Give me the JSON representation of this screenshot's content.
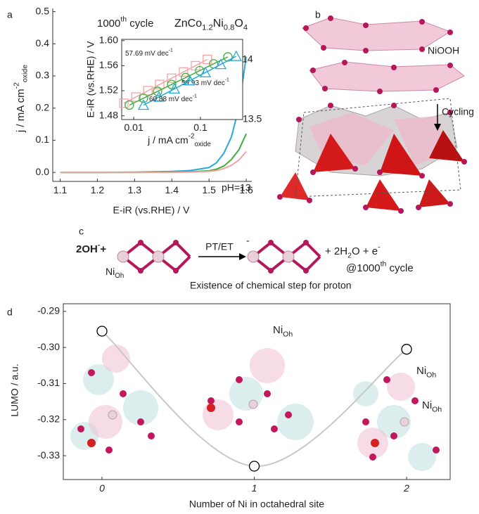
{
  "panel_labels": [
    "a",
    "b",
    "c",
    "d"
  ],
  "chart_data": [
    {
      "type": "line",
      "title": [
        {
          "text": "1000"
        },
        {
          "text": "th",
          "shift": "sup"
        },
        {
          "text": " cycle"
        }
      ],
      "subtitle": [
        {
          "text": "ZnCo"
        },
        {
          "text": "1.2",
          "shift": "sub"
        },
        {
          "text": "Ni"
        },
        {
          "text": "0.8",
          "shift": "sub"
        },
        {
          "text": "O"
        },
        {
          "text": "4",
          "shift": "sub"
        }
      ],
      "x_label": "E-iR (vs.RHE) / V",
      "y_label": [
        {
          "text": "j / mA cm"
        },
        {
          "text": "-2",
          "shift": "sup"
        },
        {
          "text": "oxide",
          "shift": "sub"
        }
      ],
      "x": [
        1.1,
        1.2,
        1.3,
        1.4,
        1.45,
        1.5,
        1.52,
        1.54,
        1.56,
        1.58,
        1.6
      ],
      "series": [
        {
          "name": "pH=14",
          "color": "#2aa9dc",
          "values": [
            0,
            0,
            0.001,
            0.003,
            0.006,
            0.015,
            0.03,
            0.06,
            0.11,
            0.2,
            0.36
          ]
        },
        {
          "name": "13.5",
          "color": "#3fae3f",
          "values": [
            0,
            0,
            0,
            0.001,
            0.002,
            0.005,
            0.01,
            0.02,
            0.04,
            0.07,
            0.12
          ]
        },
        {
          "name": "pH=13",
          "color": "#f2a4a4",
          "values": [
            0,
            0,
            0,
            0,
            0.001,
            0.003,
            0.006,
            0.012,
            0.022,
            0.038,
            0.065
          ]
        }
      ],
      "xlim": [
        1.08,
        1.615
      ],
      "ylim": [
        -0.028,
        0.51
      ],
      "xticks": [
        1.1,
        1.2,
        1.3,
        1.4,
        1.5,
        1.6
      ],
      "yticks": [
        {
          "value": 0,
          "label": "0.0"
        },
        0.1,
        0.2,
        0.3,
        0.4,
        0.5
      ]
    },
    {
      "type": "scatter",
      "log_x": true,
      "x_label": [
        {
          "text": "j / mA cm"
        },
        {
          "text": "-2",
          "shift": "sup"
        },
        {
          "text": "oxide",
          "shift": "sub"
        }
      ],
      "y_label": "E-iR (vs.RHE) / V",
      "series": [
        {
          "name": [
            {
              "text": "57.69 mV dec"
            },
            {
              "text": "-1",
              "shift": "sup"
            }
          ],
          "color": "#f2a4a4",
          "marker": "square",
          "x": [
            0.0071,
            0.0108,
            0.0163,
            0.0245,
            0.037,
            0.0559,
            0.0844,
            0.127
          ],
          "values": [
            1.5,
            1.51,
            1.52,
            1.53,
            1.54,
            1.55,
            1.56,
            1.57
          ]
        },
        {
          "name": [
            {
              "text": "59.93 mV dec"
            },
            {
              "text": "-1",
              "shift": "sup"
            }
          ],
          "color": "#3fae3f",
          "marker": "circle",
          "x": [
            0.0086,
            0.014,
            0.0228,
            0.037,
            0.06,
            0.0975,
            0.158,
            0.258
          ],
          "values": [
            1.497,
            1.508,
            1.519,
            1.53,
            1.541,
            1.552,
            1.563,
            1.574
          ]
        },
        {
          "name": [
            {
              "text": "60.88 mV dec"
            },
            {
              "text": "-1",
              "shift": "sup"
            }
          ],
          "color": "#2aa9dc",
          "marker": "triangle",
          "x": [
            0.014,
            0.0239,
            0.0408,
            0.0695,
            0.1186,
            0.202,
            0.344
          ],
          "values": [
            1.497,
            1.51,
            1.523,
            1.536,
            1.549,
            1.562,
            1.575
          ]
        }
      ],
      "xlim": [
        0.0066,
        0.43
      ],
      "ylim": [
        1.474,
        1.602
      ],
      "xticks": [
        0.01,
        0.1
      ],
      "yticks": [
        1.48,
        1.52,
        1.56,
        {
          "value": 1.6,
          "label": "1.60"
        }
      ]
    },
    {
      "type": "scatter",
      "curve": true,
      "x_label": "Number of Ni in octahedral site",
      "y_label": "LUMO / a.u.",
      "x": [
        0,
        1,
        2
      ],
      "values": [
        -0.2955,
        -0.3329,
        -0.3005
      ],
      "color": "#000000",
      "curve_color": "#c8c8c8",
      "annotations": [
        [
          {
            "text": "Ni"
          },
          {
            "text": "Oh",
            "shift": "sub"
          }
        ],
        [
          {
            "text": "Ni"
          },
          {
            "text": "Oh",
            "shift": "sub"
          }
        ],
        [
          {
            "text": "Ni"
          },
          {
            "text": "Oh",
            "shift": "sub"
          }
        ]
      ],
      "xlim": [
        -0.254,
        2.286
      ],
      "ylim": [
        -0.3366,
        -0.2879
      ],
      "xticks": [
        0,
        1,
        2
      ],
      "yticks": [
        -0.29,
        {
          "value": -0.3,
          "label": "-0.30"
        },
        -0.31,
        -0.32,
        -0.33
      ]
    }
  ],
  "structure": {
    "phase": "NiOOH",
    "arrow_label": "Cycling"
  },
  "reaction": {
    "reactant": [
      {
        "text": "2OH"
      },
      {
        "text": "-",
        "shift": "sup"
      },
      {
        "text": "+"
      }
    ],
    "arrow_label": "PT/ET",
    "charge": "-",
    "products": [
      {
        "text": "+ 2H"
      },
      {
        "text": "2",
        "shift": "sub"
      },
      {
        "text": "O  + "
      },
      {
        "text": "e"
      },
      {
        "text": "-",
        "shift": "sup"
      }
    ],
    "note": [
      {
        "text": "@1000"
      },
      {
        "text": "th",
        "shift": "sup"
      },
      {
        "text": " cycle"
      }
    ],
    "caption": "Existence of chemical step for proton",
    "site": [
      {
        "text": "Ni"
      },
      {
        "text": "Oh",
        "shift": "sub"
      }
    ]
  }
}
